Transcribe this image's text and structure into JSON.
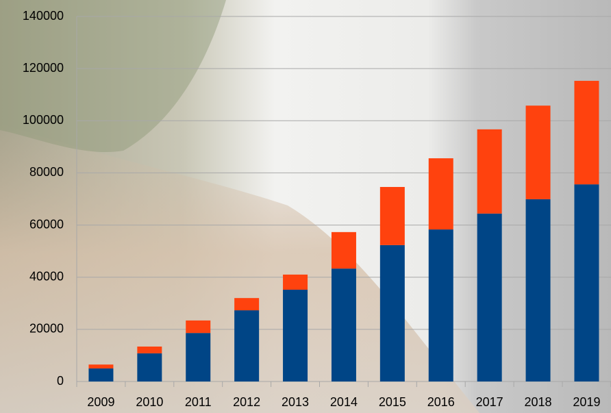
{
  "chart_data": {
    "type": "stacked-bar",
    "categories": [
      "2009",
      "2010",
      "2011",
      "2012",
      "2013",
      "2014",
      "2015",
      "2016",
      "2017",
      "2018",
      "2019"
    ],
    "series": [
      {
        "color": "#004586",
        "values": [
          5000,
          10800,
          18600,
          27300,
          35200,
          43300,
          52300,
          58300,
          64400,
          69900,
          75600
        ]
      },
      {
        "color": "#ff420e",
        "values": [
          1500,
          2600,
          4800,
          4700,
          5800,
          14000,
          22300,
          27300,
          32300,
          35900,
          39700
        ]
      }
    ],
    "ylim": [
      0,
      140000
    ],
    "yticks": [
      0,
      20000,
      40000,
      60000,
      80000,
      100000,
      120000,
      140000
    ],
    "grid": true
  }
}
